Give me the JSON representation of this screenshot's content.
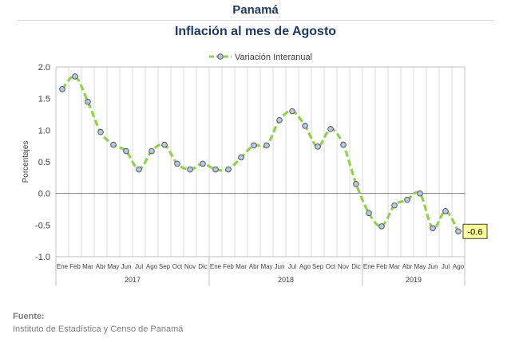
{
  "header": {
    "title": "Panamá",
    "subtitle": "Inflación al mes de Agosto"
  },
  "chart_data": {
    "type": "line",
    "title": "Inflación al mes de Agosto",
    "ylabel": "Porcentajes",
    "xlabel": "",
    "ylim": [
      -1.0,
      2.0
    ],
    "yticks": [
      "2.0",
      "1.5",
      "1.0",
      "0.5",
      "0.0",
      "-0.5",
      "-1.0"
    ],
    "ytick_values": [
      2.0,
      1.5,
      1.0,
      0.5,
      0.0,
      -0.5,
      -1.0
    ],
    "grid": true,
    "legend_position": "top-center",
    "months": [
      "Ene",
      "Feb",
      "Mar",
      "Abr",
      "May",
      "Jun",
      "Jul",
      "Ago",
      "Sep",
      "Oct",
      "Nov",
      "Dic",
      "Ene",
      "Feb",
      "Mar",
      "Abr",
      "May",
      "Jun",
      "Jul",
      "Ago",
      "Sep",
      "Oct",
      "Nov",
      "Dic",
      "Ene",
      "Feb",
      "Mar",
      "Abr",
      "May",
      "Jun",
      "Jul",
      "Ago"
    ],
    "years": [
      "2017",
      "2018",
      "2019"
    ],
    "series": [
      {
        "name": "Variación Interanual",
        "color": "#92d050",
        "marker_color": "#b4c7e7",
        "values": [
          1.65,
          1.85,
          1.45,
          0.97,
          0.77,
          0.67,
          0.38,
          0.67,
          0.77,
          0.47,
          0.38,
          0.47,
          0.38,
          0.38,
          0.57,
          0.76,
          0.76,
          1.16,
          1.3,
          1.07,
          0.74,
          1.02,
          0.77,
          0.15,
          -0.31,
          -0.52,
          -0.19,
          -0.1,
          0.0,
          -0.55,
          -0.28,
          -0.6
        ]
      }
    ],
    "last_value_label": "-0.6",
    "label_color": "#ffff99"
  },
  "source": {
    "label": "Fuente:",
    "text": "Instituto de Estadística y Censo de Panamá"
  }
}
